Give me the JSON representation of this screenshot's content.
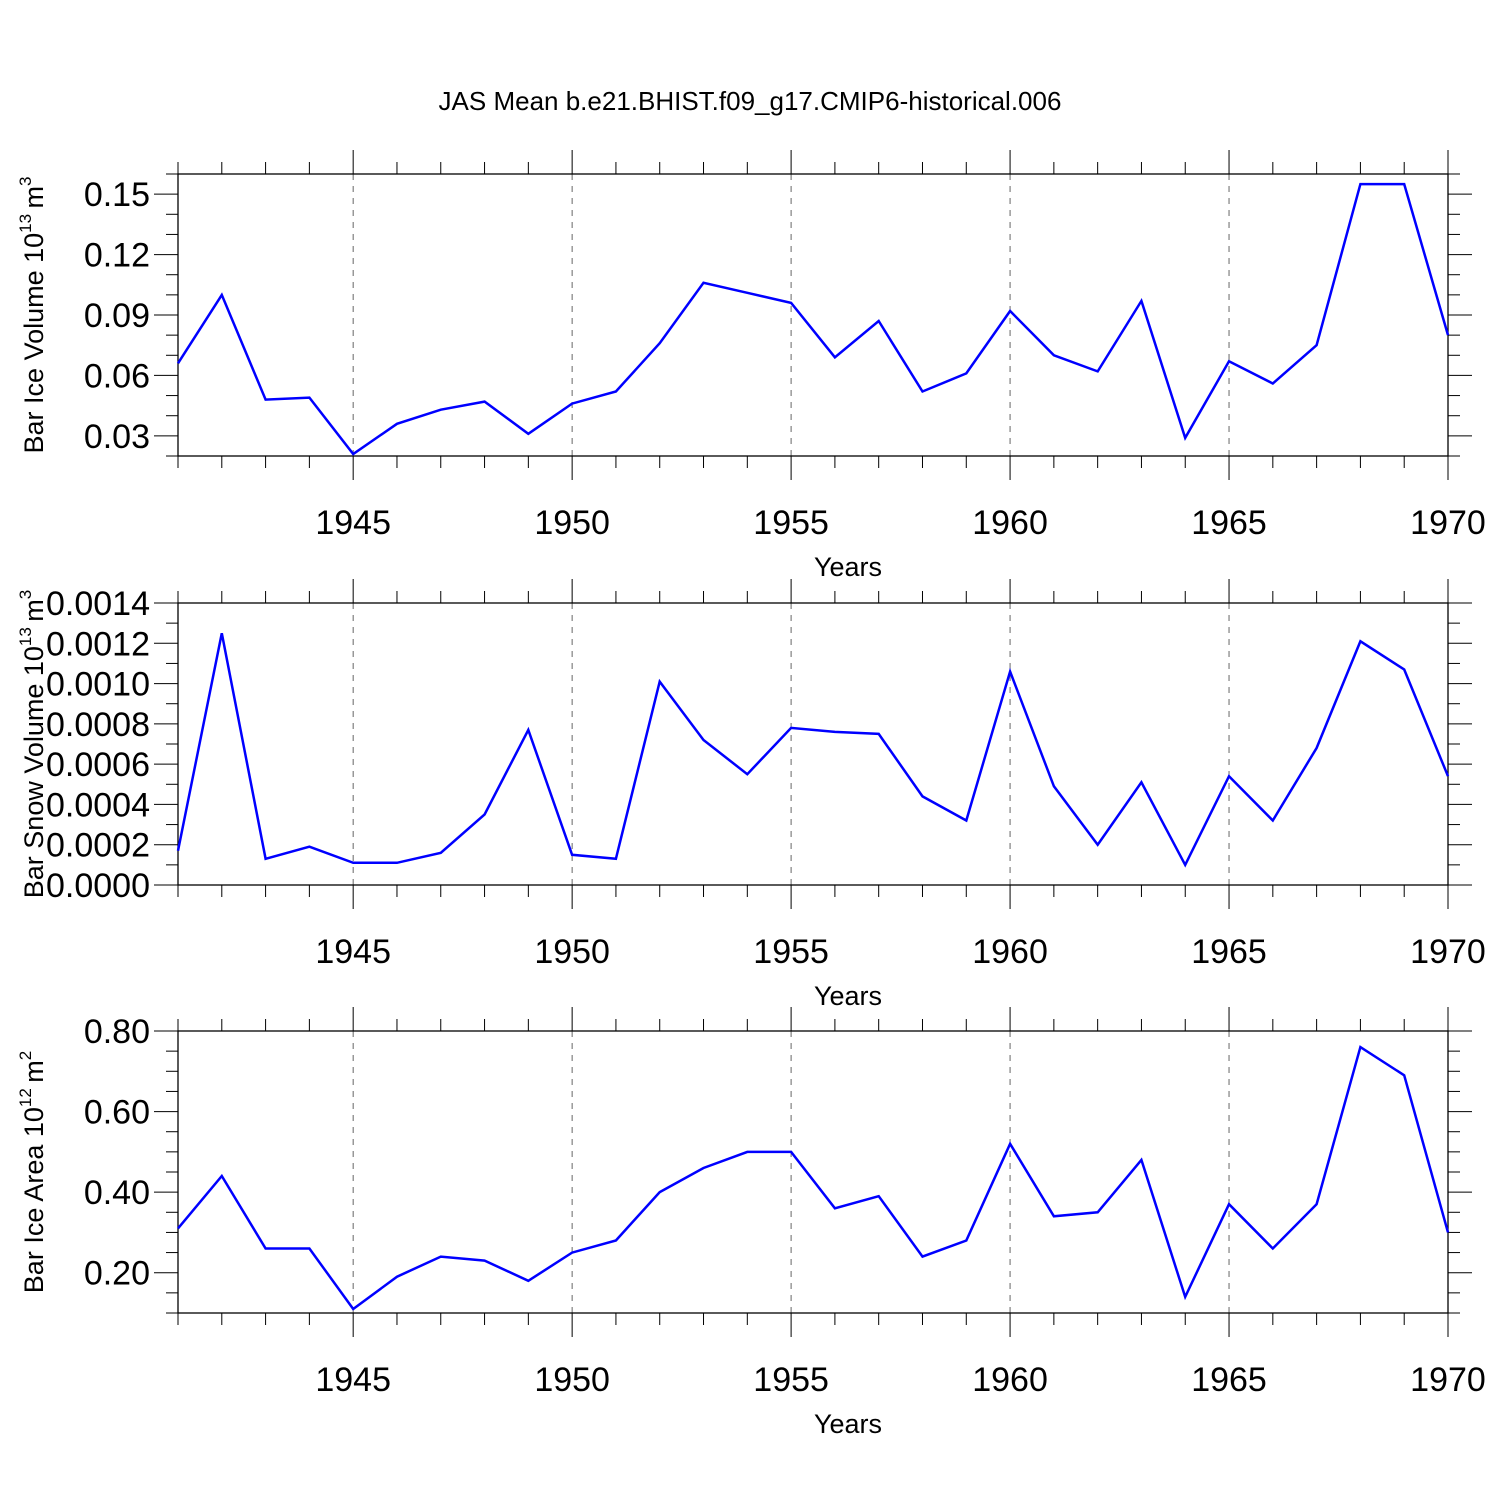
{
  "title": "JAS Mean b.e21.BHIST.f09_g17.CMIP6-historical.006",
  "colors": {
    "series": "#0000ff",
    "axis": "#000000",
    "grid": "#666666"
  },
  "chart_data": [
    {
      "type": "line",
      "title": "JAS Mean b.e21.BHIST.f09_g17.CMIP6-historical.006",
      "xlabel": "Years",
      "ylabel": "Bar Ice Volume 10",
      "ylabel_exp": "13",
      "ylabel_unit": "m",
      "ylabel_unit_exp": "3",
      "xlim": [
        1941,
        1970
      ],
      "ylim": [
        0.02,
        0.16
      ],
      "yticks": [
        0.03,
        0.06,
        0.09,
        0.12,
        0.15
      ],
      "yticklabels": [
        "0.03",
        "0.06",
        "0.09",
        "0.12",
        "0.15"
      ],
      "yminor": 0.01,
      "xticks": [
        1945,
        1950,
        1955,
        1960,
        1965,
        1970
      ],
      "xticklabels": [
        "1945",
        "1950",
        "1955",
        "1960",
        "1965",
        "1970"
      ],
      "x": [
        1941,
        1942,
        1943,
        1944,
        1945,
        1946,
        1947,
        1948,
        1949,
        1950,
        1951,
        1952,
        1953,
        1954,
        1955,
        1956,
        1957,
        1958,
        1959,
        1960,
        1961,
        1962,
        1963,
        1964,
        1965,
        1966,
        1967,
        1968,
        1969,
        1970
      ],
      "values": [
        0.066,
        0.1,
        0.048,
        0.049,
        0.021,
        0.036,
        0.043,
        0.047,
        0.031,
        0.046,
        0.052,
        0.076,
        0.106,
        0.101,
        0.096,
        0.069,
        0.087,
        0.052,
        0.061,
        0.092,
        0.07,
        0.062,
        0.097,
        0.029,
        0.067,
        0.056,
        0.075,
        0.155,
        0.155,
        0.08
      ]
    },
    {
      "type": "line",
      "xlabel": "Years",
      "ylabel": "Bar Snow Volume 10",
      "ylabel_exp": "13",
      "ylabel_unit": "m",
      "ylabel_unit_exp": "3",
      "xlim": [
        1941,
        1970
      ],
      "ylim": [
        0.0,
        0.0014
      ],
      "yticks": [
        0.0,
        0.0002,
        0.0004,
        0.0006,
        0.0008,
        0.001,
        0.0012,
        0.0014
      ],
      "yticklabels": [
        "0.0000",
        "0.0002",
        "0.0004",
        "0.0006",
        "0.0008",
        "0.0010",
        "0.0012",
        "0.0014"
      ],
      "yminor": 0.0001,
      "xticks": [
        1945,
        1950,
        1955,
        1960,
        1965,
        1970
      ],
      "xticklabels": [
        "1945",
        "1950",
        "1955",
        "1960",
        "1965",
        "1970"
      ],
      "x": [
        1941,
        1942,
        1943,
        1944,
        1945,
        1946,
        1947,
        1948,
        1949,
        1950,
        1951,
        1952,
        1953,
        1954,
        1955,
        1956,
        1957,
        1958,
        1959,
        1960,
        1961,
        1962,
        1963,
        1964,
        1965,
        1966,
        1967,
        1968,
        1969,
        1970
      ],
      "values": [
        0.00017,
        0.00125,
        0.00013,
        0.00019,
        0.00011,
        0.00011,
        0.00016,
        0.00035,
        0.00077,
        0.00015,
        0.00013,
        0.00101,
        0.00072,
        0.00055,
        0.00078,
        0.00076,
        0.00075,
        0.00044,
        0.00032,
        0.00106,
        0.00049,
        0.0002,
        0.00051,
        0.0001,
        0.00054,
        0.00032,
        0.00068,
        0.00121,
        0.00107,
        0.00054
      ]
    },
    {
      "type": "line",
      "xlabel": "Years",
      "ylabel": "Bar Ice Area 10",
      "ylabel_exp": "12",
      "ylabel_unit": "m",
      "ylabel_unit_exp": "2",
      "xlim": [
        1941,
        1970
      ],
      "ylim": [
        0.1,
        0.8
      ],
      "yticks": [
        0.2,
        0.4,
        0.6,
        0.8
      ],
      "yticklabels": [
        "0.20",
        "0.40",
        "0.60",
        "0.80"
      ],
      "yminor": 0.05,
      "xticks": [
        1945,
        1950,
        1955,
        1960,
        1965,
        1970
      ],
      "xticklabels": [
        "1945",
        "1950",
        "1955",
        "1960",
        "1965",
        "1970"
      ],
      "x": [
        1941,
        1942,
        1943,
        1944,
        1945,
        1946,
        1947,
        1948,
        1949,
        1950,
        1951,
        1952,
        1953,
        1954,
        1955,
        1956,
        1957,
        1958,
        1959,
        1960,
        1961,
        1962,
        1963,
        1964,
        1965,
        1966,
        1967,
        1968,
        1969,
        1970
      ],
      "values": [
        0.31,
        0.44,
        0.26,
        0.26,
        0.11,
        0.19,
        0.24,
        0.23,
        0.18,
        0.25,
        0.28,
        0.4,
        0.46,
        0.5,
        0.5,
        0.36,
        0.39,
        0.24,
        0.28,
        0.52,
        0.34,
        0.35,
        0.48,
        0.14,
        0.37,
        0.26,
        0.37,
        0.76,
        0.69,
        0.3
      ]
    }
  ]
}
